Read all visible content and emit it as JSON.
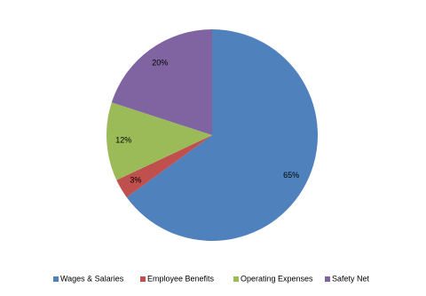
{
  "chart_data": {
    "type": "pie",
    "categories": [
      "Wages & Salaries",
      "Employee Benefits",
      "Operating Expenses",
      "Safety Net"
    ],
    "values": [
      65,
      3,
      12,
      20
    ],
    "value_labels": [
      "65%",
      "3%",
      "12%",
      "20%"
    ],
    "colors": [
      "#4f81bd",
      "#c0504d",
      "#9bbb59",
      "#8064a2"
    ],
    "legend": "bottom"
  }
}
